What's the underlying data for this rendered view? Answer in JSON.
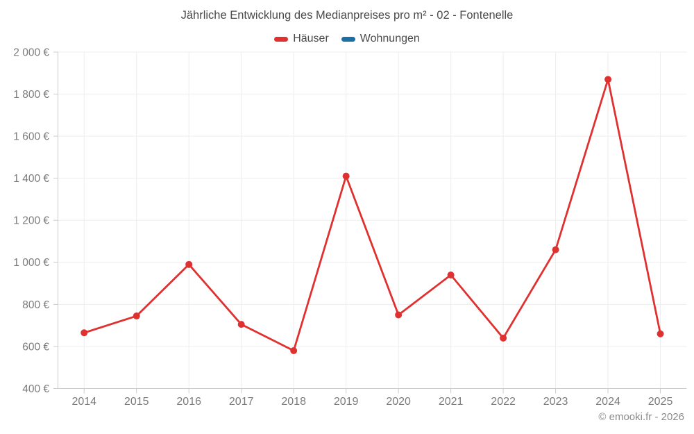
{
  "footer": {
    "credit": "© emooki.fr - 2026"
  },
  "chart_data": {
    "type": "line",
    "title": "Jährliche Entwicklung des Medianpreises pro m² - 02 - Fontenelle",
    "categories": [
      "2014",
      "2015",
      "2016",
      "2017",
      "2018",
      "2019",
      "2020",
      "2021",
      "2022",
      "2023",
      "2024",
      "2025"
    ],
    "series": [
      {
        "name": "Häuser",
        "color": "#e03131",
        "values": [
          665,
          745,
          990,
          705,
          580,
          1410,
          750,
          940,
          640,
          1060,
          1870,
          660
        ]
      },
      {
        "name": "Wohnungen",
        "color": "#1c6fa4",
        "values": []
      }
    ],
    "xlabel": "",
    "ylabel": "",
    "ylim": [
      400,
      2000
    ],
    "ytick_step": 200,
    "ytick_suffix": " €",
    "grid": true,
    "legend_position": "top",
    "marker": "circle"
  }
}
